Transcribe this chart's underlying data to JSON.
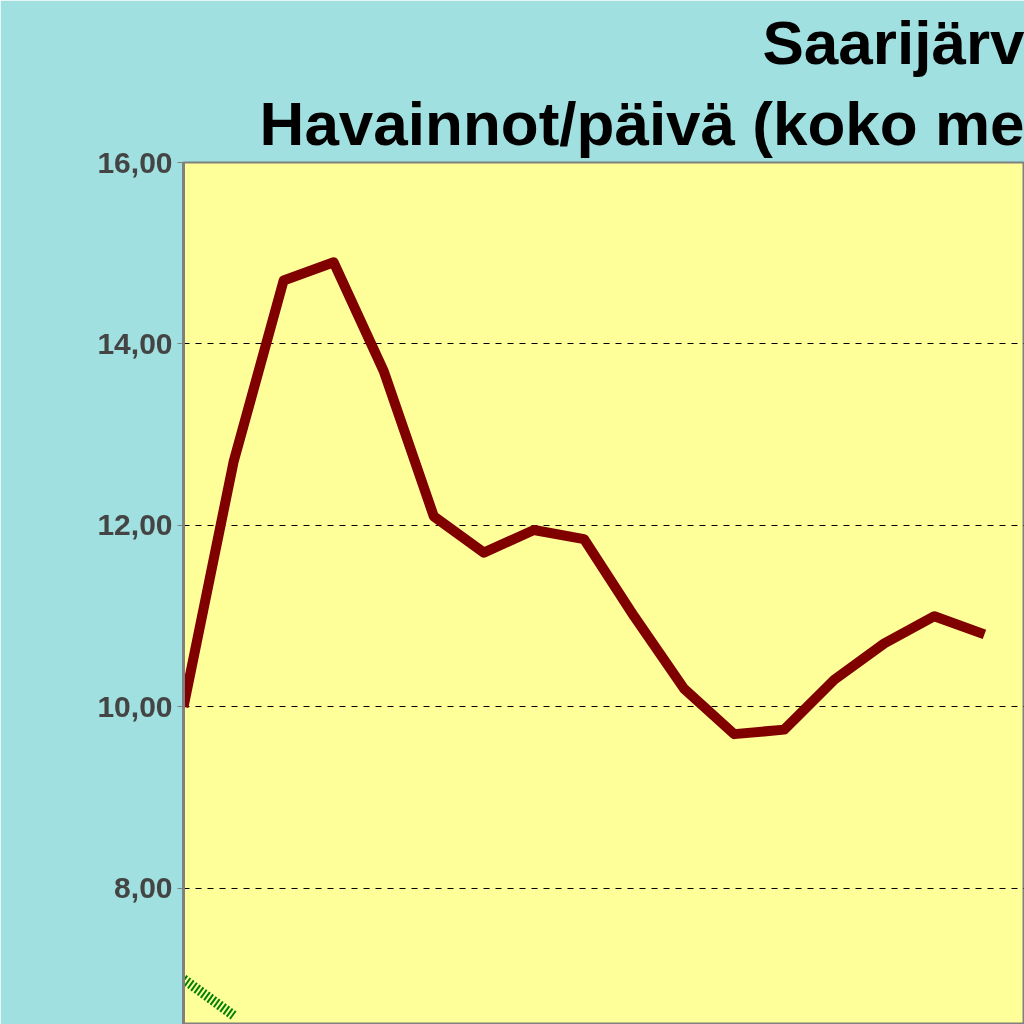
{
  "chart_data": {
    "type": "line",
    "title": "Saarijärv",
    "subtitle": "Havainnot/päivä (koko me",
    "categories": [
      null,
      null,
      null,
      null,
      null,
      null,
      null,
      null,
      null,
      null,
      null,
      null,
      null,
      null,
      null,
      null,
      null
    ],
    "series": [
      {
        "color": "#800000",
        "values": [
          10.0,
          12.7,
          14.7,
          14.9,
          13.7,
          12.1,
          11.7,
          11.95,
          11.85,
          11.0,
          10.2,
          9.7,
          9.75,
          10.3,
          10.7,
          11.0,
          10.8
        ]
      },
      {
        "color": "#008000",
        "line_style": "dotted",
        "values": [
          7.0,
          6.6,
          null,
          null,
          null,
          null,
          null,
          null,
          null,
          null,
          null,
          null,
          null,
          null,
          null,
          null,
          null
        ]
      }
    ],
    "ylim": [
      6.5,
      16
    ],
    "yticks": [
      {
        "value": 8,
        "label": "8,00"
      },
      {
        "value": 10,
        "label": "10,00"
      },
      {
        "value": 12,
        "label": "12,00"
      },
      {
        "value": 14,
        "label": "14,00"
      },
      {
        "value": 16,
        "label": "16,00"
      }
    ],
    "grid": "y",
    "tick_labels": "y",
    "marker": "none",
    "line_style": "solid"
  }
}
